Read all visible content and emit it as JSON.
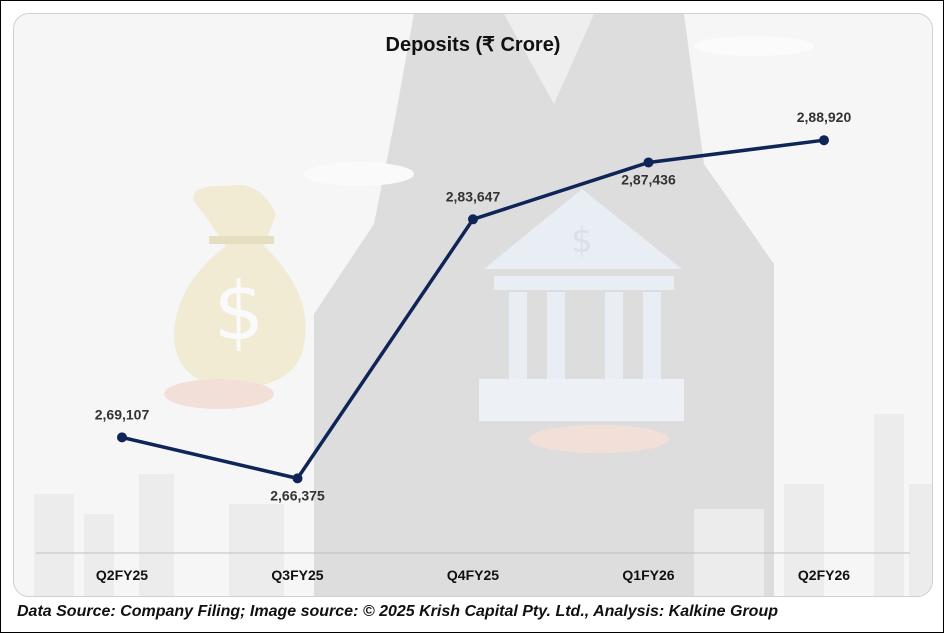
{
  "colors": {
    "line": "#0f2457",
    "point": "#0f2457",
    "axis": "#bfbfbf",
    "label": "#333333",
    "title": "#111111"
  },
  "chart_data": {
    "type": "line",
    "title": "Deposits (₹ Crore)",
    "xlabel": "",
    "ylabel": "",
    "categories": [
      "Q2FY25",
      "Q3FY25",
      "Q4FY25",
      "Q1FY26",
      "Q2FY26"
    ],
    "series": [
      {
        "values": [
          269107,
          266375,
          283647,
          287436,
          288920
        ],
        "labels": [
          "2,69,107",
          "2,66,375",
          "2,83,647",
          "2,87,436",
          "2,88,920"
        ]
      }
    ],
    "ylim": [
      264000,
      292000
    ],
    "grid": false,
    "legend": "none"
  },
  "footer": {
    "source": "Data Source: Company Filing; Image source: © 2025 Krish Capital Pty. Ltd., Analysis: Kalkine Group"
  }
}
